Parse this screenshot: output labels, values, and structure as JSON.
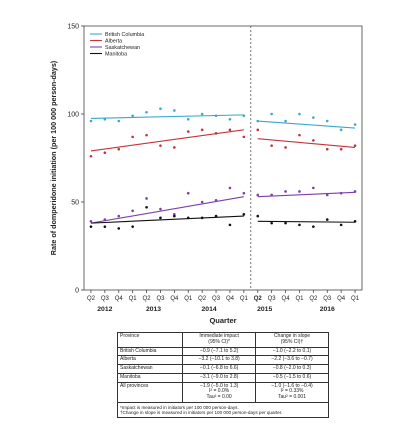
{
  "chart_data": {
    "type": "scatter",
    "ylabel": "Rate of domperidone initiation (per 100 000 person-days)",
    "xlabel": "Quarter",
    "ylim": [
      0,
      150
    ],
    "yticks": [
      0,
      50,
      100,
      150
    ],
    "grid": false,
    "legend_position": "top-left",
    "intervention_index": 12,
    "quarter_labels": [
      "Q2",
      "Q3",
      "Q4",
      "Q1",
      "Q2",
      "Q3",
      "Q4",
      "Q1",
      "Q2",
      "Q3",
      "Q4",
      "Q1",
      "Q2",
      "Q3",
      "Q4",
      "Q1",
      "Q2",
      "Q3",
      "Q4",
      "Q1"
    ],
    "year_labels": [
      {
        "label": "2012",
        "start": 0,
        "end": 2
      },
      {
        "label": "2013",
        "start": 3,
        "end": 6
      },
      {
        "label": "2014",
        "start": 7,
        "end": 10
      },
      {
        "label": "2015",
        "start": 11,
        "end": 14
      },
      {
        "label": "2016",
        "start": 15,
        "end": 19
      }
    ],
    "series": [
      {
        "name": "British Columbia",
        "color": "#39a9c9",
        "values": [
          96,
          97,
          96,
          99,
          101,
          103,
          102,
          97,
          100,
          99,
          97,
          99,
          96,
          100,
          96,
          100,
          98,
          96,
          91,
          94
        ],
        "trend_pre": [
          97.5,
          99.5
        ],
        "trend_post": [
          96,
          92
        ]
      },
      {
        "name": "Alberta",
        "color": "#c5333c",
        "values": [
          76,
          78,
          80,
          87,
          88,
          82,
          81,
          90,
          91,
          89,
          91,
          87,
          91,
          82,
          81,
          88,
          85,
          80,
          80,
          82
        ],
        "trend_pre": [
          79,
          91
        ],
        "trend_post": [
          86,
          81
        ]
      },
      {
        "name": "Saskatchewan",
        "color": "#7d3fa8",
        "values": [
          39,
          40,
          42,
          45,
          52,
          46,
          43,
          55,
          50,
          51,
          58,
          55,
          54,
          54,
          56,
          56,
          58,
          54,
          55,
          56
        ],
        "trend_pre": [
          38,
          53
        ],
        "trend_post": [
          53,
          55.5
        ]
      },
      {
        "name": "Manitoba",
        "color": "#111111",
        "values": [
          36,
          36,
          35,
          36,
          47,
          41,
          42,
          41,
          41,
          42,
          37,
          43,
          42,
          38,
          38,
          37,
          36,
          40,
          37,
          39
        ],
        "trend_pre": [
          38,
          42
        ],
        "trend_post": [
          39,
          38.5
        ]
      }
    ]
  },
  "table": {
    "headers": {
      "province": "Province",
      "immediate": "Immediate impact\n(95% CI)*",
      "slope": "Change in slope\n(95% CI)†"
    },
    "rows": [
      {
        "province": "British Columbia",
        "immediate": "−0.9 (−7.1 to 5.2)",
        "slope": "−1.0 (−2.2 to 0.1)"
      },
      {
        "province": "Alberta",
        "immediate": "−3.2 (−10.1 to 3.8)",
        "slope": "−2.2 (−3.6 to −0.7)"
      },
      {
        "province": "Saskatchewan",
        "immediate": "−0.1 (−6.8 to 6.6)",
        "slope": "−0.8 (−2.0 to 0.3)"
      },
      {
        "province": "Manitoba",
        "immediate": "−3.1 (−9.0 to 2.8)",
        "slope": "−0.5 (−1.5 to 0.6)"
      },
      {
        "province": "All provinces",
        "immediate": "−1.9 (−5.0 to 1.3)\nI² = 0.0%\nTau² = 0.00",
        "slope": "−1.0 (−1.6 to −0.4)\nI² = 0.33%\nTau² = 0.001"
      }
    ],
    "footnotes": [
      "*Impact is measured in initiators per 100 000 person-days.",
      "†Change in slope is measured in initiators per 100 000 person-days per quarter."
    ]
  }
}
